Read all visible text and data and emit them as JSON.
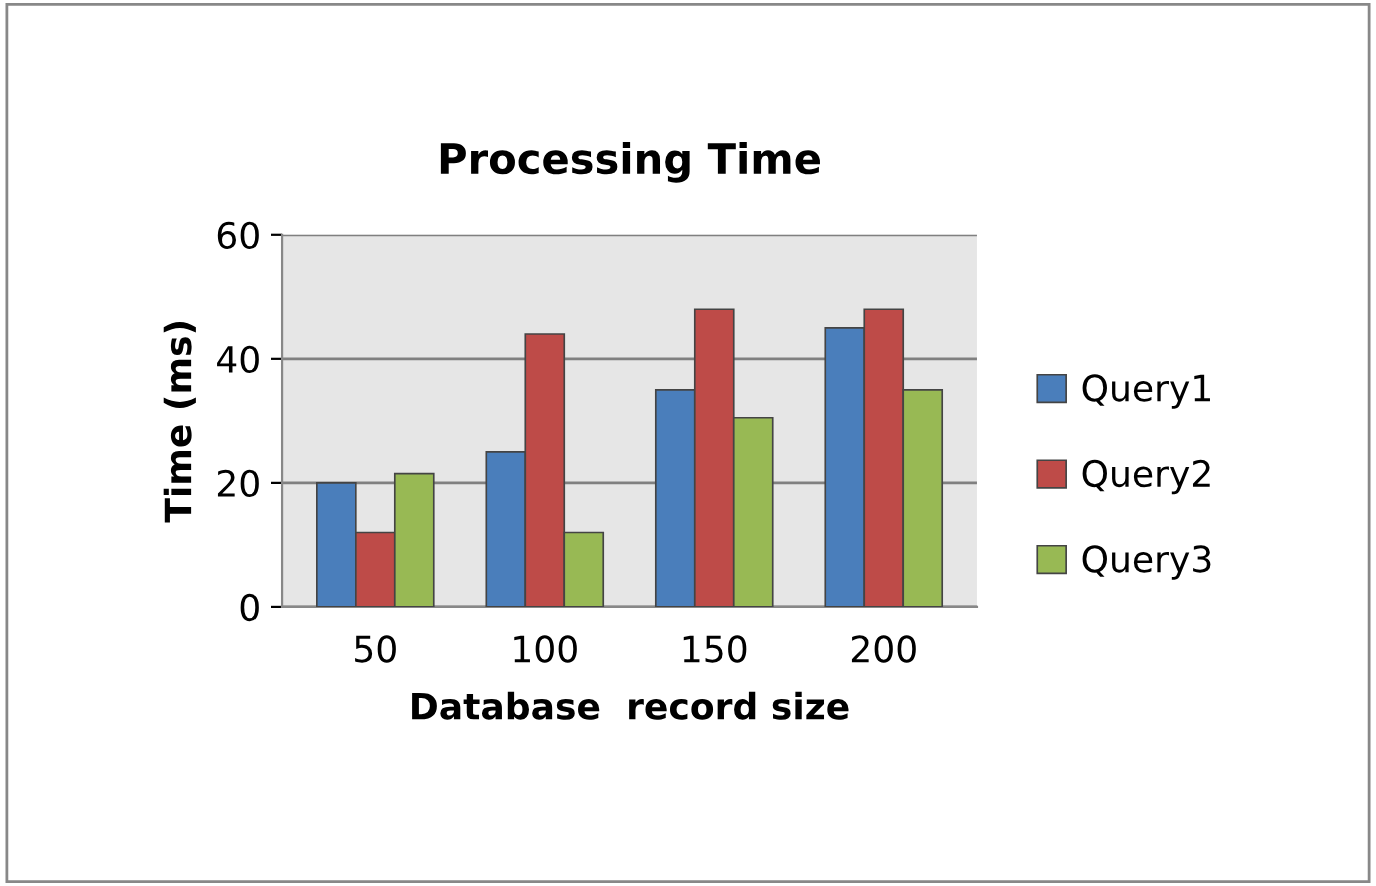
{
  "chart_data": {
    "type": "bar",
    "title": "Processing Time",
    "xlabel": "Database  record size",
    "ylabel": "Time (ms)",
    "categories": [
      "50",
      "100",
      "150",
      "200"
    ],
    "series": [
      {
        "name": "Query1",
        "color": "#4a7ebb",
        "values": [
          20,
          25,
          35,
          45
        ]
      },
      {
        "name": "Query2",
        "color": "#be4b48",
        "values": [
          12,
          44,
          48,
          48
        ]
      },
      {
        "name": "Query3",
        "color": "#98b954",
        "values": [
          21.5,
          12,
          30.5,
          35
        ]
      }
    ],
    "ylim": [
      0,
      60
    ],
    "yticks": [
      0,
      20,
      40,
      60
    ],
    "grid": "y",
    "legend": "right"
  }
}
